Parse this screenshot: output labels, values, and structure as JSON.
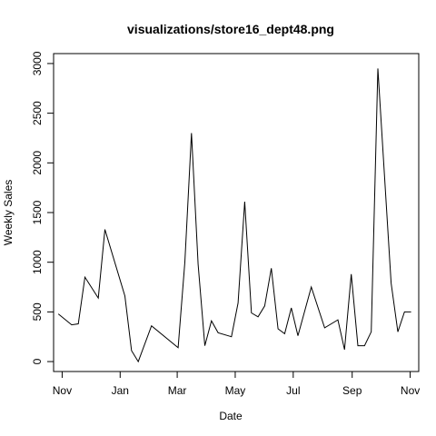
{
  "chart_data": {
    "type": "line",
    "title": "visualizations/store16_dept48.png",
    "xlabel": "Date",
    "ylabel": "Weekly Sales",
    "x_ticks": [
      "Nov",
      "Jan",
      "Mar",
      "May",
      "Jul",
      "Sep",
      "Nov"
    ],
    "y_ticks": [
      "0",
      "500",
      "1000",
      "1500",
      "2000",
      "2500",
      "3000"
    ],
    "ylim": [
      -100,
      3100
    ],
    "xlim": [
      "2011-10-23",
      "2012-11-10"
    ],
    "grid": false,
    "legend": "none",
    "line_color": "#000000",
    "series": [
      {
        "x": [
          "2011-10-28",
          "2011-11-11",
          "2011-11-18",
          "2011-11-25",
          "2011-12-09",
          "2011-12-16",
          "2012-01-06",
          "2012-01-13",
          "2012-01-20",
          "2012-02-03",
          "2012-03-02",
          "2012-03-09",
          "2012-03-16",
          "2012-03-23",
          "2012-03-30",
          "2012-04-06",
          "2012-04-13",
          "2012-04-27",
          "2012-05-04",
          "2012-05-11",
          "2012-05-18",
          "2012-05-25",
          "2012-06-01",
          "2012-06-08",
          "2012-06-15",
          "2012-06-22",
          "2012-06-29",
          "2012-07-06",
          "2012-07-20",
          "2012-08-03",
          "2012-08-17",
          "2012-08-24",
          "2012-08-31",
          "2012-09-07",
          "2012-09-14",
          "2012-09-21",
          "2012-09-28",
          "2012-10-12",
          "2012-10-19",
          "2012-10-26",
          "2012-11-02"
        ],
        "y": [
          480,
          370,
          380,
          850,
          640,
          1330,
          660,
          110,
          0,
          360,
          140,
          1000,
          2300,
          980,
          160,
          410,
          290,
          250,
          590,
          1610,
          490,
          450,
          560,
          940,
          330,
          280,
          540,
          260,
          750,
          340,
          420,
          120,
          880,
          160,
          160,
          300,
          2950,
          790,
          300,
          500,
          500
        ]
      }
    ]
  }
}
